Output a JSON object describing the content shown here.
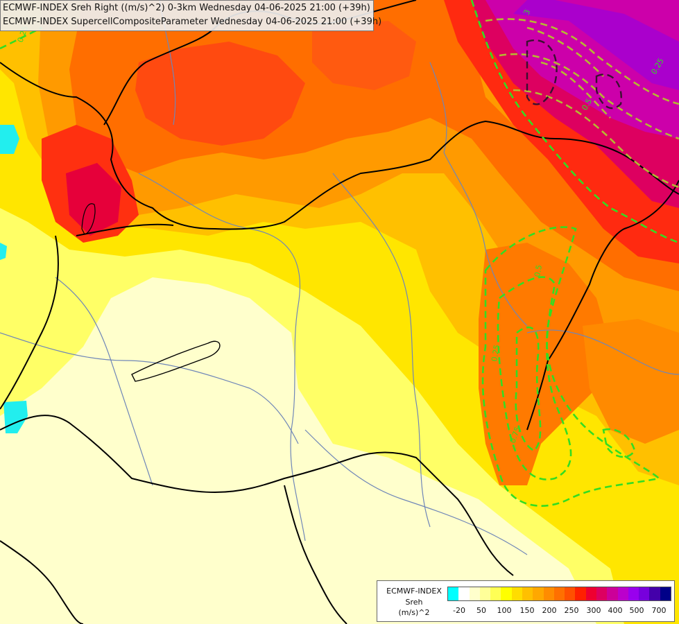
{
  "title": {
    "line1": "ECMWF-INDEX Sreh Right ((m/s)^2) 0-3km Wednesday 04-06-2025 21:00 (+39h)",
    "line2": "ECMWF-INDEX SupercellCompositeParameter Wednesday 04-06-2025 21:00 (+39h)"
  },
  "legend": {
    "model": "ECMWF-INDEX",
    "parameter": "Sreh",
    "unit": "(m/s)^2",
    "ticks": [
      "-20",
      "50",
      "100",
      "150",
      "200",
      "250",
      "300",
      "400",
      "500",
      "700"
    ],
    "colors": [
      "#00ffff",
      "#ffffff",
      "#ffffcc",
      "#ffff99",
      "#ffff55",
      "#ffff00",
      "#ffdd00",
      "#ffc000",
      "#ffa800",
      "#ff8c00",
      "#ff7000",
      "#ff5000",
      "#ff2000",
      "#ee0030",
      "#dd0060",
      "#cc0099",
      "#bb00cc",
      "#9900ee",
      "#7700dd",
      "#4400aa",
      "#000088"
    ]
  },
  "contour_labels": [
    "0.25",
    "3",
    "0.5",
    "0.75",
    "0.25",
    "0.5",
    "0.25"
  ],
  "colors": {
    "border": "#000000",
    "river": "#6f86b8",
    "contour": "#33dd22",
    "contour_high": "#b5b832"
  }
}
